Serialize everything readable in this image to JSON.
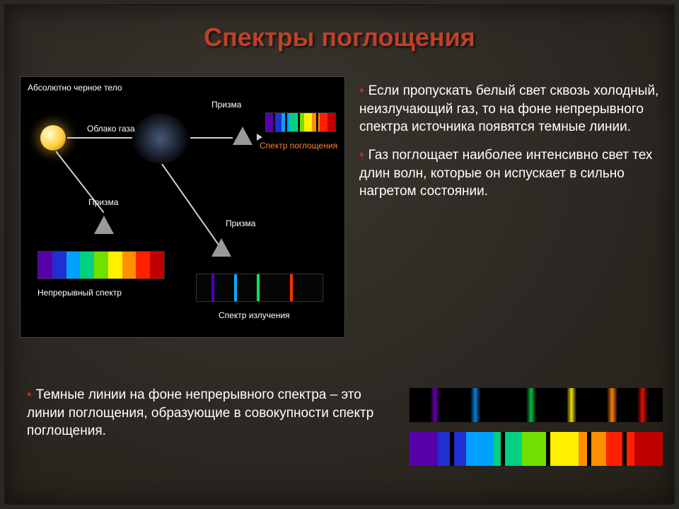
{
  "title": {
    "text": "Спектры поглощения",
    "fontsize": 36,
    "color": "#c04028"
  },
  "body_fontsize": 19,
  "text_color": "#ffffff",
  "bullet_color": "#b03020",
  "background_color": "#2a2824",
  "diagram": {
    "labels": {
      "blackbody": "Абсолютно черное тело",
      "gas_cloud": "Облако газа",
      "prism": "Призма",
      "absorption": "Спектр поглощения",
      "continuous": "Непрерывный спектр",
      "emission": "Спектр излучения"
    },
    "label_fontsize": 12,
    "star": {
      "color_inner": "#fffbd0",
      "color_mid": "#ffd040",
      "color_outer": "#b87000"
    },
    "cloud_color": "rgba(120,150,200,0.6)",
    "prism_color": "#9a9a9a",
    "continuous_colors": [
      "#5a00a8",
      "#2030d0",
      "#00a0ff",
      "#00d080",
      "#70e000",
      "#ffef00",
      "#ff9000",
      "#ff2000",
      "#c00000"
    ],
    "absorption_colors": [
      "#5a00a8",
      "#2030d0",
      "#00a0ff",
      "#00d080",
      "#70e000",
      "#ffef00",
      "#ff9000",
      "#ff2000",
      "#c00000"
    ],
    "absorption_dark_positions_pct": [
      10,
      28,
      46,
      72
    ],
    "emission_lines": [
      {
        "pos_pct": 12,
        "color": "#4a00d0"
      },
      {
        "pos_pct": 30,
        "color": "#00b0ff"
      },
      {
        "pos_pct": 48,
        "color": "#10e050"
      },
      {
        "pos_pct": 74,
        "color": "#ff3000"
      }
    ]
  },
  "paragraphs": {
    "p1": "Если пропускать белый свет сквозь холодный, неизлучающий газ, то на фоне непрерывного спектра источника появятся темные линии.",
    "p2": "Газ поглощает наиболее интенсивно свет тех длин волн, которые он испускает в сильно нагретом состоянии.",
    "p3": "Темные линии на фоне непрерывного спектра – это линии поглощения, образующие в совокупности спектр поглощения."
  },
  "bottom_spectra": {
    "row1": {
      "type": "emission_on_black",
      "lines": [
        {
          "pos_pct": 8,
          "width_pct": 4,
          "color": "#6a00b0"
        },
        {
          "pos_pct": 24,
          "width_pct": 4,
          "color": "#0080e0"
        },
        {
          "pos_pct": 46,
          "width_pct": 4,
          "color": "#00c040"
        },
        {
          "pos_pct": 62,
          "width_pct": 4,
          "color": "#f0e000"
        },
        {
          "pos_pct": 78,
          "width_pct": 4,
          "color": "#ff8000"
        },
        {
          "pos_pct": 90,
          "width_pct": 4,
          "color": "#e01000"
        }
      ]
    },
    "row2": {
      "type": "absorption_on_rainbow",
      "segments": [
        "#5a00a8",
        "#2030d0",
        "#00a0ff",
        "#00d080",
        "#70e000",
        "#ffef00",
        "#ff9000",
        "#ff2000",
        "#c00000"
      ],
      "dark_pos_pct": [
        16,
        36,
        54,
        70,
        84
      ]
    }
  }
}
